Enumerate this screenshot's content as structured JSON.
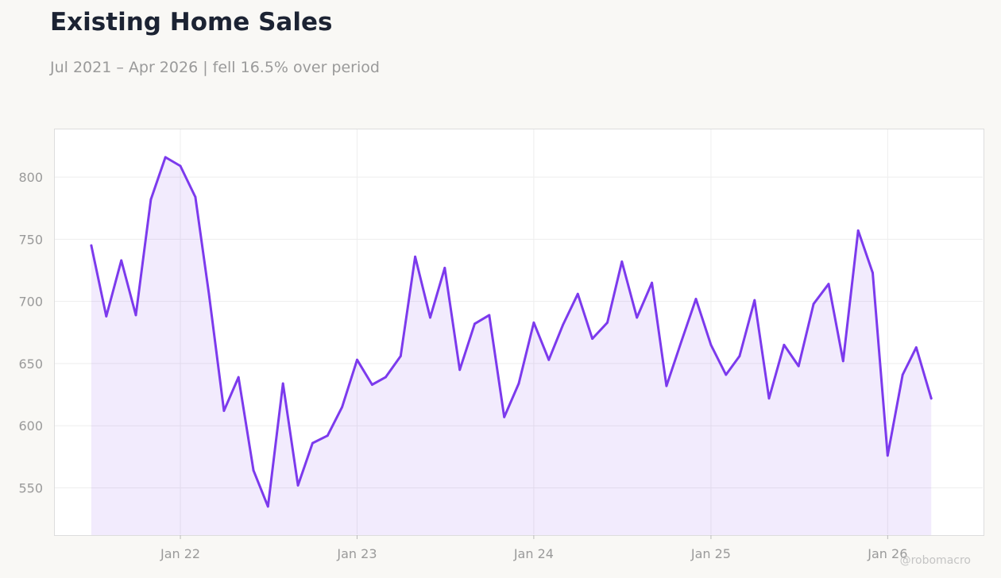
{
  "header": {
    "title": "Existing Home Sales",
    "subtitle": "Jul 2021 – Apr 2026 | fell 16.5% over period"
  },
  "watermark": "@robomacro",
  "colors": {
    "line": "#7c3aed",
    "area": "#7c3aed",
    "background": "#f9f8f5",
    "plot_background": "#ffffff",
    "grid": "#eeeeee",
    "text": "#9a9a9a",
    "title": "#1c2333"
  },
  "chart_data": {
    "type": "area",
    "title": "Existing Home Sales",
    "subtitle": "Jul 2021 – Apr 2026 | fell 16.5% over period",
    "xlabel": "",
    "ylabel": "",
    "grid": true,
    "legend": "none",
    "xlim": [
      "2021-04-15",
      "2026-07-18"
    ],
    "ylim": [
      512,
      839
    ],
    "yticks": [
      550,
      600,
      650,
      700,
      750,
      800
    ],
    "xticks": [
      {
        "date": "2022-01-01",
        "label": "Jan 22"
      },
      {
        "date": "2023-01-01",
        "label": "Jan 23"
      },
      {
        "date": "2024-01-01",
        "label": "Jan 24"
      },
      {
        "date": "2025-01-01",
        "label": "Jan 25"
      },
      {
        "date": "2026-01-01",
        "label": "Jan 26"
      }
    ],
    "series": [
      {
        "x": [
          "2021-07",
          "2021-08",
          "2021-09",
          "2021-10",
          "2021-11",
          "2021-12",
          "2022-01",
          "2022-02",
          "2022-03",
          "2022-04",
          "2022-05",
          "2022-06",
          "2022-07",
          "2022-08",
          "2022-09",
          "2022-10",
          "2022-11",
          "2022-12",
          "2023-01",
          "2023-02",
          "2023-03",
          "2023-04",
          "2023-05",
          "2023-06",
          "2023-07",
          "2023-08",
          "2023-09",
          "2023-10",
          "2023-11",
          "2023-12",
          "2024-01",
          "2024-02",
          "2024-03",
          "2024-04",
          "2024-05",
          "2024-06",
          "2024-07",
          "2024-08",
          "2024-09",
          "2024-10",
          "2024-11",
          "2024-12",
          "2025-01",
          "2025-02",
          "2025-03",
          "2025-04",
          "2025-05",
          "2025-06",
          "2025-07",
          "2025-08",
          "2025-09",
          "2025-10",
          "2025-11",
          "2025-12",
          "2026-01",
          "2026-02",
          "2026-03",
          "2026-04"
        ],
        "values": [
          745,
          688,
          733,
          689,
          782,
          816,
          809,
          784,
          706,
          612,
          639,
          564,
          535,
          634,
          552,
          586,
          592,
          615,
          653,
          633,
          639,
          656,
          736,
          687,
          727,
          645,
          682,
          689,
          607,
          634,
          683,
          653,
          681,
          706,
          670,
          683,
          732,
          687,
          715,
          632,
          668,
          702,
          665,
          641,
          656,
          701,
          622,
          665,
          648,
          698,
          714,
          652,
          757,
          723,
          576,
          641,
          663,
          622
        ]
      }
    ]
  }
}
